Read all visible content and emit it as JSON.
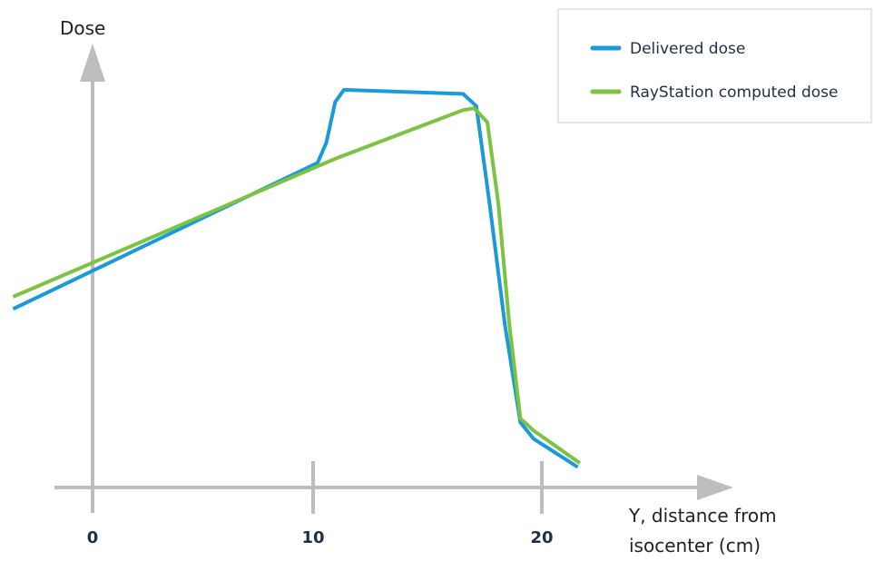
{
  "chart_data": {
    "type": "line",
    "ylabel": "Dose",
    "xlabel_lines": [
      "Y, distance from",
      "isocenter (cm)"
    ],
    "x_ticks": [
      0,
      10,
      20
    ],
    "x_tick_labels": [
      "0",
      "10",
      "20"
    ],
    "xlim": [
      -4,
      28
    ],
    "ylim": [
      0,
      100
    ],
    "grid": false,
    "legend_position": "top-right",
    "series": [
      {
        "name": "Delivered dose",
        "color": "#1a9ad6",
        "points": [
          [
            -3.6,
            44
          ],
          [
            10.2,
            80
          ],
          [
            10.6,
            85
          ],
          [
            11.0,
            95
          ],
          [
            11.4,
            98
          ],
          [
            16.8,
            97
          ],
          [
            17.4,
            94
          ],
          [
            18.0,
            70
          ],
          [
            18.7,
            40
          ],
          [
            19.4,
            16
          ],
          [
            20.0,
            12
          ],
          [
            22.0,
            5
          ]
        ]
      },
      {
        "name": "RayStation computed dose",
        "color": "#7cc243",
        "points": [
          [
            -3.6,
            47
          ],
          [
            11.0,
            81
          ],
          [
            16.8,
            93
          ],
          [
            17.3,
            93.5
          ],
          [
            17.9,
            90
          ],
          [
            18.4,
            70
          ],
          [
            18.9,
            40
          ],
          [
            19.4,
            17
          ],
          [
            20.0,
            14
          ],
          [
            22.1,
            6
          ]
        ]
      }
    ]
  }
}
